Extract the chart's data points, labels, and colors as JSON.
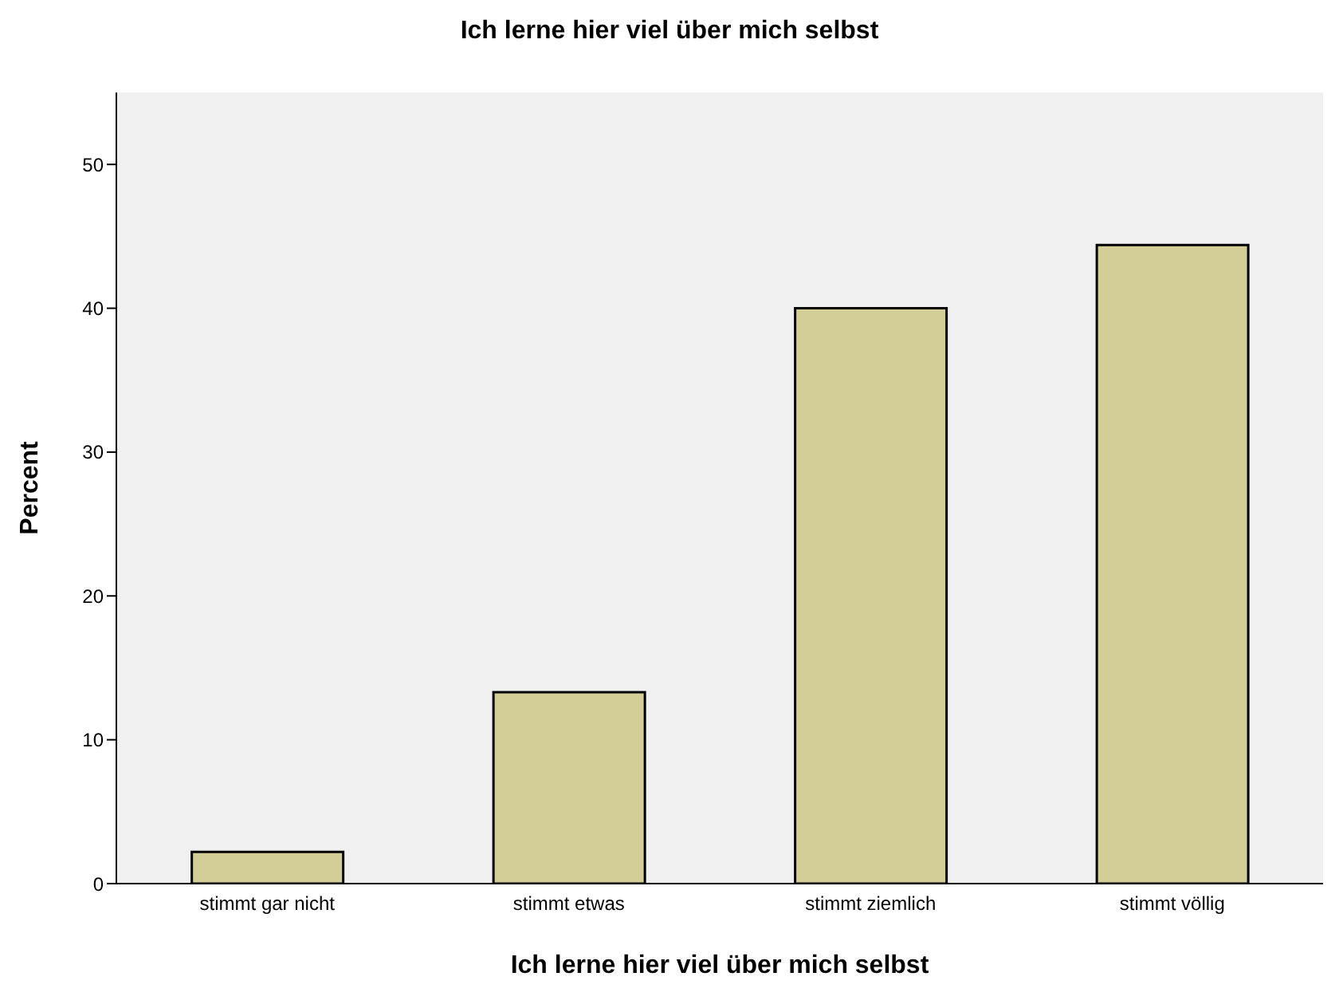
{
  "chart_data": {
    "type": "bar",
    "title": "Ich lerne hier viel über mich selbst",
    "xlabel": "Ich lerne hier viel über mich selbst",
    "ylabel": "Percent",
    "categories": [
      "stimmt gar nicht",
      "stimmt etwas",
      "stimmt ziemlich",
      "stimmt völlig"
    ],
    "values": [
      2.2,
      13.3,
      40.0,
      44.4
    ],
    "color": "#d3ce97",
    "ylim": [
      0,
      55
    ],
    "yticks": [
      0,
      10,
      20,
      30,
      40,
      50
    ],
    "grid": false
  }
}
